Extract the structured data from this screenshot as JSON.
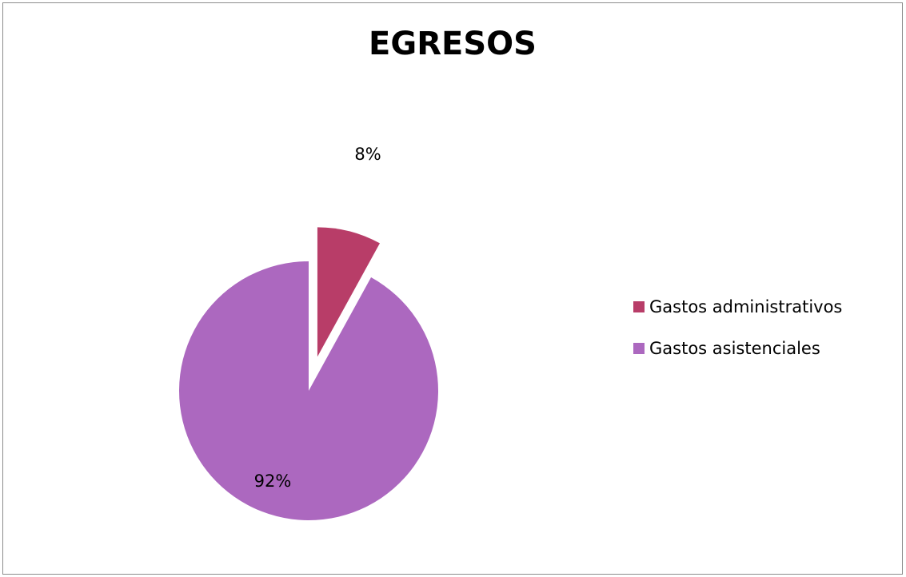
{
  "chart_data": {
    "type": "pie",
    "title": "EGRESOS",
    "categories": [
      "Gastos administrativos",
      "Gastos asistenciales"
    ],
    "values": [
      8,
      92
    ],
    "labels": [
      "8%",
      "92%"
    ],
    "colors": [
      "#b83d68",
      "#ac68bf"
    ],
    "exploded": [
      true,
      false
    ],
    "legend_position": "right"
  }
}
